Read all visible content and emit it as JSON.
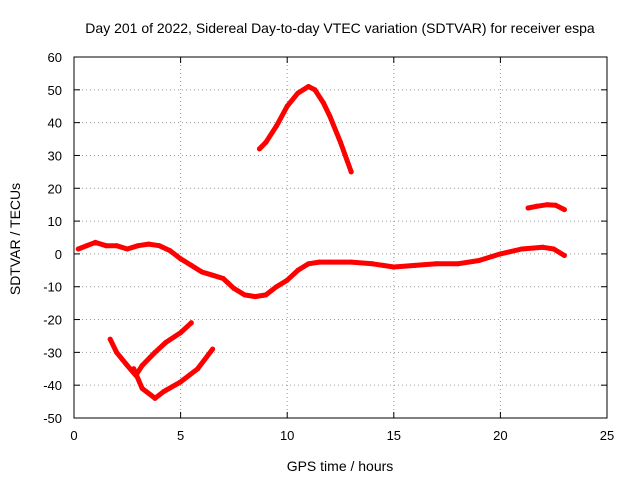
{
  "chart_data": {
    "type": "line",
    "title": "Day 201 of 2022, Sidereal Day-to-day VTEC variation (SDTVAR) for receiver espa",
    "xlabel": "GPS time / hours",
    "ylabel": "SDTVAR / TECUs",
    "xlim": [
      0,
      25
    ],
    "ylim": [
      -50,
      60
    ],
    "xticks": [
      0,
      5,
      10,
      15,
      20,
      25
    ],
    "yticks": [
      -50,
      -40,
      -30,
      -20,
      -10,
      0,
      10,
      20,
      30,
      40,
      50,
      60
    ],
    "grid": true,
    "series_color": "#ff0000",
    "series": [
      {
        "name": "main",
        "x": [
          0.2,
          0.6,
          1.0,
          1.5,
          2.0,
          2.5,
          3.0,
          3.5,
          4.0,
          4.5,
          5.0,
          5.5,
          6.0,
          6.5,
          7.0,
          7.5,
          8.0,
          8.5,
          9.0,
          9.5,
          10.0,
          10.5,
          11.0,
          11.5,
          12.0,
          13.0,
          14.0,
          15.0,
          16.0,
          17.0,
          18.0,
          19.0,
          20.0,
          21.0,
          22.0,
          22.5,
          23.0
        ],
        "y": [
          1.5,
          2.5,
          3.5,
          2.5,
          2.5,
          1.5,
          2.5,
          3.0,
          2.5,
          1.0,
          -1.5,
          -3.5,
          -5.5,
          -6.5,
          -7.5,
          -10.5,
          -12.5,
          -13.0,
          -12.5,
          -10.0,
          -8.0,
          -5.0,
          -3.0,
          -2.5,
          -2.5,
          -2.5,
          -3.0,
          -4.0,
          -3.5,
          -3.0,
          -3.0,
          -2.0,
          0.0,
          1.5,
          2.0,
          1.5,
          -0.5
        ]
      },
      {
        "name": "upper-arc",
        "x": [
          8.7,
          9.0,
          9.5,
          10.0,
          10.5,
          11.0,
          11.3,
          11.7,
          12.0,
          12.5,
          13.0
        ],
        "y": [
          32,
          34,
          39,
          45,
          49,
          51,
          50,
          46,
          42,
          34,
          25
        ]
      },
      {
        "name": "late-segment",
        "x": [
          21.3,
          21.7,
          22.2,
          22.6,
          23.0
        ],
        "y": [
          14,
          14.5,
          15,
          14.8,
          13.5
        ]
      },
      {
        "name": "lower-left-a",
        "x": [
          1.7,
          2.0,
          2.5,
          2.9,
          3.2,
          3.8,
          4.3,
          5.0,
          5.5
        ],
        "y": [
          -26,
          -30,
          -34,
          -37,
          -34,
          -30,
          -27,
          -24,
          -21
        ]
      },
      {
        "name": "lower-left-b",
        "x": [
          2.8,
          3.2,
          3.6,
          3.8,
          4.2,
          5.0,
          5.8,
          6.5
        ],
        "y": [
          -35,
          -41,
          -43,
          -44,
          -42,
          -39,
          -35,
          -29
        ]
      }
    ]
  }
}
